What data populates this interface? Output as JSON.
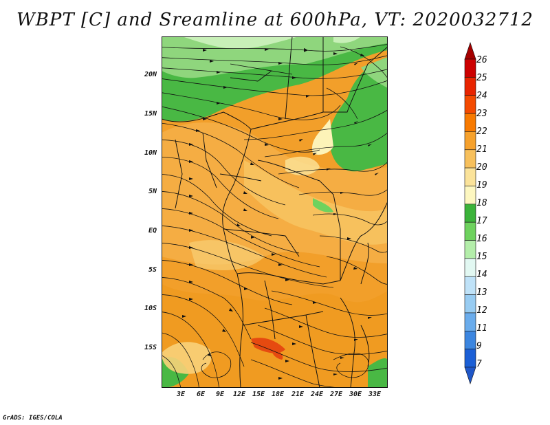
{
  "title": "WBPT [C] and Sreamline at 600hPa, VT: 2020032712",
  "footer": "GrADS: IGES/COLA",
  "map": {
    "lat_labels": [
      "20N",
      "15N",
      "10N",
      "5N",
      "EQ",
      "5S",
      "10S",
      "15S"
    ],
    "lon_labels": [
      "3E",
      "6E",
      "9E",
      "12E",
      "15E",
      "18E",
      "21E",
      "24E",
      "27E",
      "30E",
      "33E"
    ],
    "extent": {
      "lon_min": 0,
      "lon_max": 35,
      "lat_min": -20,
      "lat_max": 25
    }
  },
  "colorbar": {
    "labels": [
      "26",
      "25",
      "24",
      "23",
      "22",
      "21",
      "20",
      "19",
      "18",
      "17",
      "16",
      "15",
      "14",
      "13",
      "12",
      "11",
      "9",
      "7"
    ],
    "colors": [
      "#a50000",
      "#cc0000",
      "#e82400",
      "#f44a00",
      "#f87a00",
      "#f6a12c",
      "#f7c05c",
      "#fbe39a",
      "#fdf7c0",
      "#3bb33a",
      "#6ed25e",
      "#b4eeaa",
      "#e2f8f2",
      "#bfe2f8",
      "#98ccf2",
      "#6aacec",
      "#3c86e0",
      "#1b5fd6",
      "#1f57c8"
    ]
  }
}
